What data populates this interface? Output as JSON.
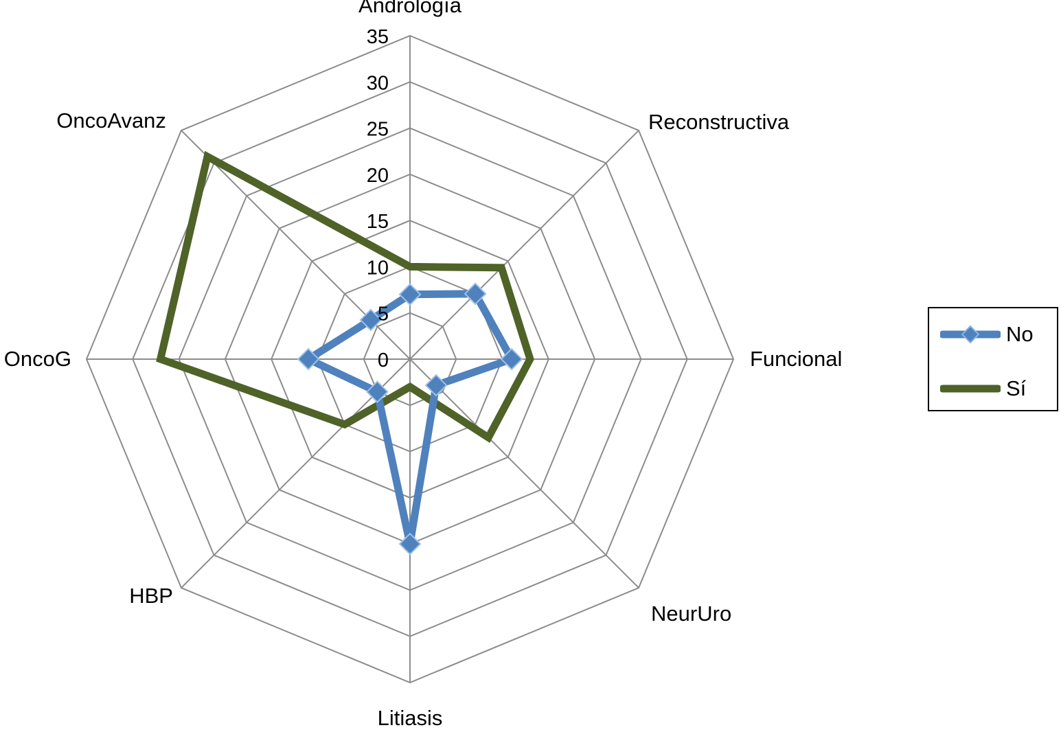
{
  "chart_data": {
    "type": "radar",
    "categories": [
      "Andrología",
      "Reconstructiva",
      "Funcional",
      "NeurUro",
      "Litiasis",
      "HBP",
      "OncoG",
      "OncoAvanz"
    ],
    "ticks": [
      0,
      5,
      10,
      15,
      20,
      25,
      30,
      35
    ],
    "tick_labels": [
      "0",
      "5",
      "10",
      "15",
      "20",
      "25",
      "30",
      "35"
    ],
    "rmax": 35,
    "grid": true,
    "legend_position": "right",
    "series": [
      {
        "name": "No",
        "values": [
          7,
          10,
          11,
          4,
          20,
          5,
          11,
          6
        ],
        "color": "#4F81BD",
        "marker": "diamond"
      },
      {
        "name": "Sí",
        "values": [
          10,
          14,
          13,
          12,
          3,
          10,
          27,
          31
        ],
        "color": "#4F6228",
        "marker": "none"
      }
    ]
  },
  "legend": {
    "items": [
      {
        "label": "No",
        "color": "#4F81BD"
      },
      {
        "label": "Sí",
        "color": "#4F6228"
      }
    ]
  }
}
